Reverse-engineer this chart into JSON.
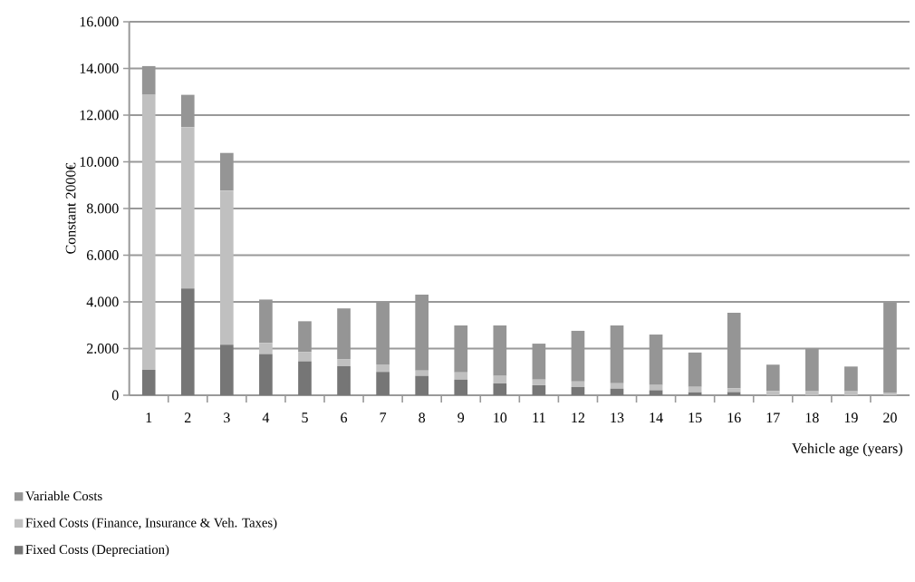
{
  "chart_data": {
    "type": "bar",
    "stacked": true,
    "xlabel": "Vehicle age (years)",
    "ylabel": "Constant 2000€",
    "categories": [
      "1",
      "2",
      "3",
      "4",
      "5",
      "6",
      "7",
      "8",
      "9",
      "10",
      "11",
      "12",
      "13",
      "14",
      "15",
      "16",
      "17",
      "18",
      "19",
      "20"
    ],
    "series": [
      {
        "name": "Fixed Costs (Depreciation)",
        "color": "#767676",
        "values": [
          1090,
          4570,
          2160,
          1770,
          1460,
          1240,
          1000,
          820,
          670,
          500,
          430,
          350,
          280,
          210,
          130,
          140,
          null,
          null,
          null,
          null
        ]
      },
      {
        "name": "Fixed Costs (Finance, Insurance & Veh. Taxes)",
        "color": "#c0c0c0",
        "values": [
          11780,
          6910,
          6610,
          470,
          390,
          310,
          320,
          240,
          310,
          330,
          240,
          240,
          230,
          230,
          230,
          160,
          180,
          170,
          170,
          120
        ]
      },
      {
        "name": "Variable Costs",
        "color": "#959595",
        "values": [
          1230,
          1390,
          1610,
          1860,
          1320,
          2170,
          2680,
          3250,
          2010,
          2160,
          1540,
          2170,
          2480,
          2160,
          1470,
          3230,
          1130,
          1840,
          1060,
          3860
        ]
      }
    ],
    "ylim": [
      0,
      16000
    ],
    "yticks": [
      {
        "value": 0,
        "label": "0"
      },
      {
        "value": 2000,
        "label": "2.000"
      },
      {
        "value": 4000,
        "label": "4.000"
      },
      {
        "value": 6000,
        "label": "6.000"
      },
      {
        "value": 8000,
        "label": "8.000"
      },
      {
        "value": 10000,
        "label": "10.000"
      },
      {
        "value": 12000,
        "label": "12.000"
      },
      {
        "value": 14000,
        "label": "14.000"
      },
      {
        "value": 16000,
        "label": "16.000"
      }
    ],
    "grid": "y",
    "legend": "bottom"
  }
}
